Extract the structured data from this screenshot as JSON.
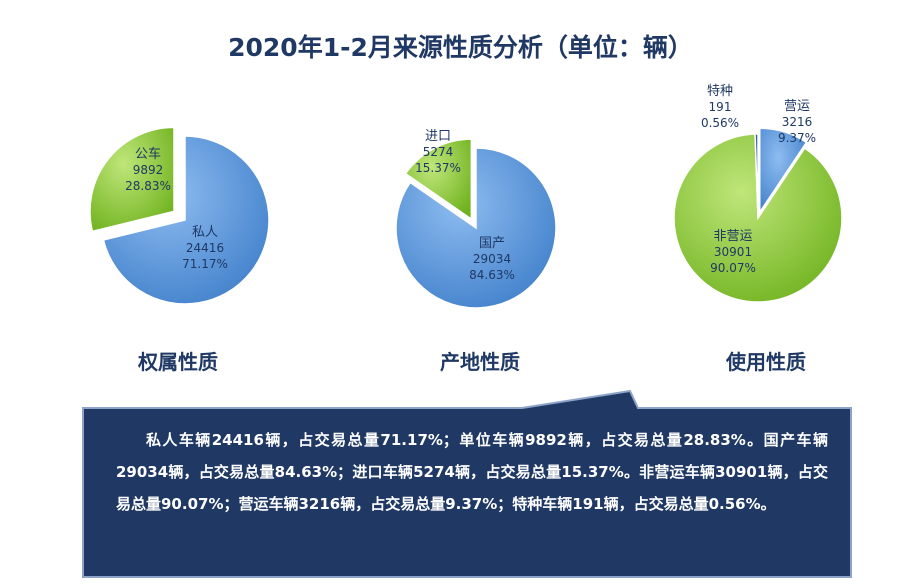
{
  "title": "2020年1-2月来源性质分析（单位：辆）",
  "chart_data": [
    {
      "type": "pie",
      "caption": "权属性质",
      "slices": [
        {
          "name": "私人",
          "value": 24416,
          "percent": "71.17%",
          "color": "#4f90d8"
        },
        {
          "name": "公车",
          "value": 9892,
          "percent": "28.83%",
          "color": "#86c82e"
        }
      ]
    },
    {
      "type": "pie",
      "caption": "产地性质",
      "slices": [
        {
          "name": "国产",
          "value": 29034,
          "percent": "84.63%",
          "color": "#4f90d8"
        },
        {
          "name": "进口",
          "value": 5274,
          "percent": "15.37%",
          "color": "#86c82e"
        }
      ]
    },
    {
      "type": "pie",
      "caption": "使用性质",
      "slices": [
        {
          "name": "营运",
          "value": 3216,
          "percent": "9.37%",
          "color": "#4f90d8"
        },
        {
          "name": "非营运",
          "value": 30901,
          "percent": "90.07%",
          "color": "#86c82e"
        },
        {
          "name": "特种",
          "value": 191,
          "percent": "0.56%",
          "color": "#1f3f8a"
        }
      ]
    }
  ],
  "summary": "私人车辆24416辆，占交易总量71.17%；单位车辆9892辆，占交易总量28.83%。国产车辆29034辆，占交易总量84.63%；进口车辆5274辆，占交易总量15.37%。非营运车辆30901辆，占交易总量90.07%；营运车辆3216辆，占交易总量9.37%；特种车辆191辆，占交易总量0.56%。",
  "colors": {
    "title": "#1f3864",
    "callout_bg": "#1f3864",
    "callout_border": "#8da4c8"
  }
}
